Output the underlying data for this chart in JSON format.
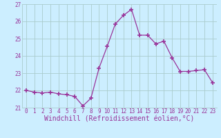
{
  "hours": [
    0,
    1,
    2,
    3,
    4,
    5,
    6,
    7,
    8,
    9,
    10,
    11,
    12,
    13,
    14,
    15,
    16,
    17,
    18,
    19,
    20,
    21,
    22,
    23
  ],
  "values": [
    22.0,
    21.9,
    21.85,
    21.9,
    21.8,
    21.75,
    21.65,
    21.1,
    21.55,
    23.3,
    24.55,
    25.85,
    26.35,
    26.7,
    25.2,
    25.2,
    24.7,
    24.85,
    23.9,
    23.1,
    23.1,
    23.15,
    23.2,
    22.45
  ],
  "line_color": "#993399",
  "marker": "+",
  "marker_size": 4,
  "marker_lw": 1.2,
  "bg_color": "#cceeff",
  "grid_color": "#aacccc",
  "xlabel": "Windchill (Refroidissement éolien,°C)",
  "xlabel_color": "#993399",
  "ylim": [
    21,
    27
  ],
  "yticks": [
    21,
    22,
    23,
    24,
    25,
    26,
    27
  ],
  "xticks": [
    0,
    1,
    2,
    3,
    4,
    5,
    6,
    7,
    8,
    9,
    10,
    11,
    12,
    13,
    14,
    15,
    16,
    17,
    18,
    19,
    20,
    21,
    22,
    23
  ],
  "tick_color": "#993399",
  "tick_fontsize": 5.5,
  "xlabel_fontsize": 7.0,
  "linewidth": 0.9
}
